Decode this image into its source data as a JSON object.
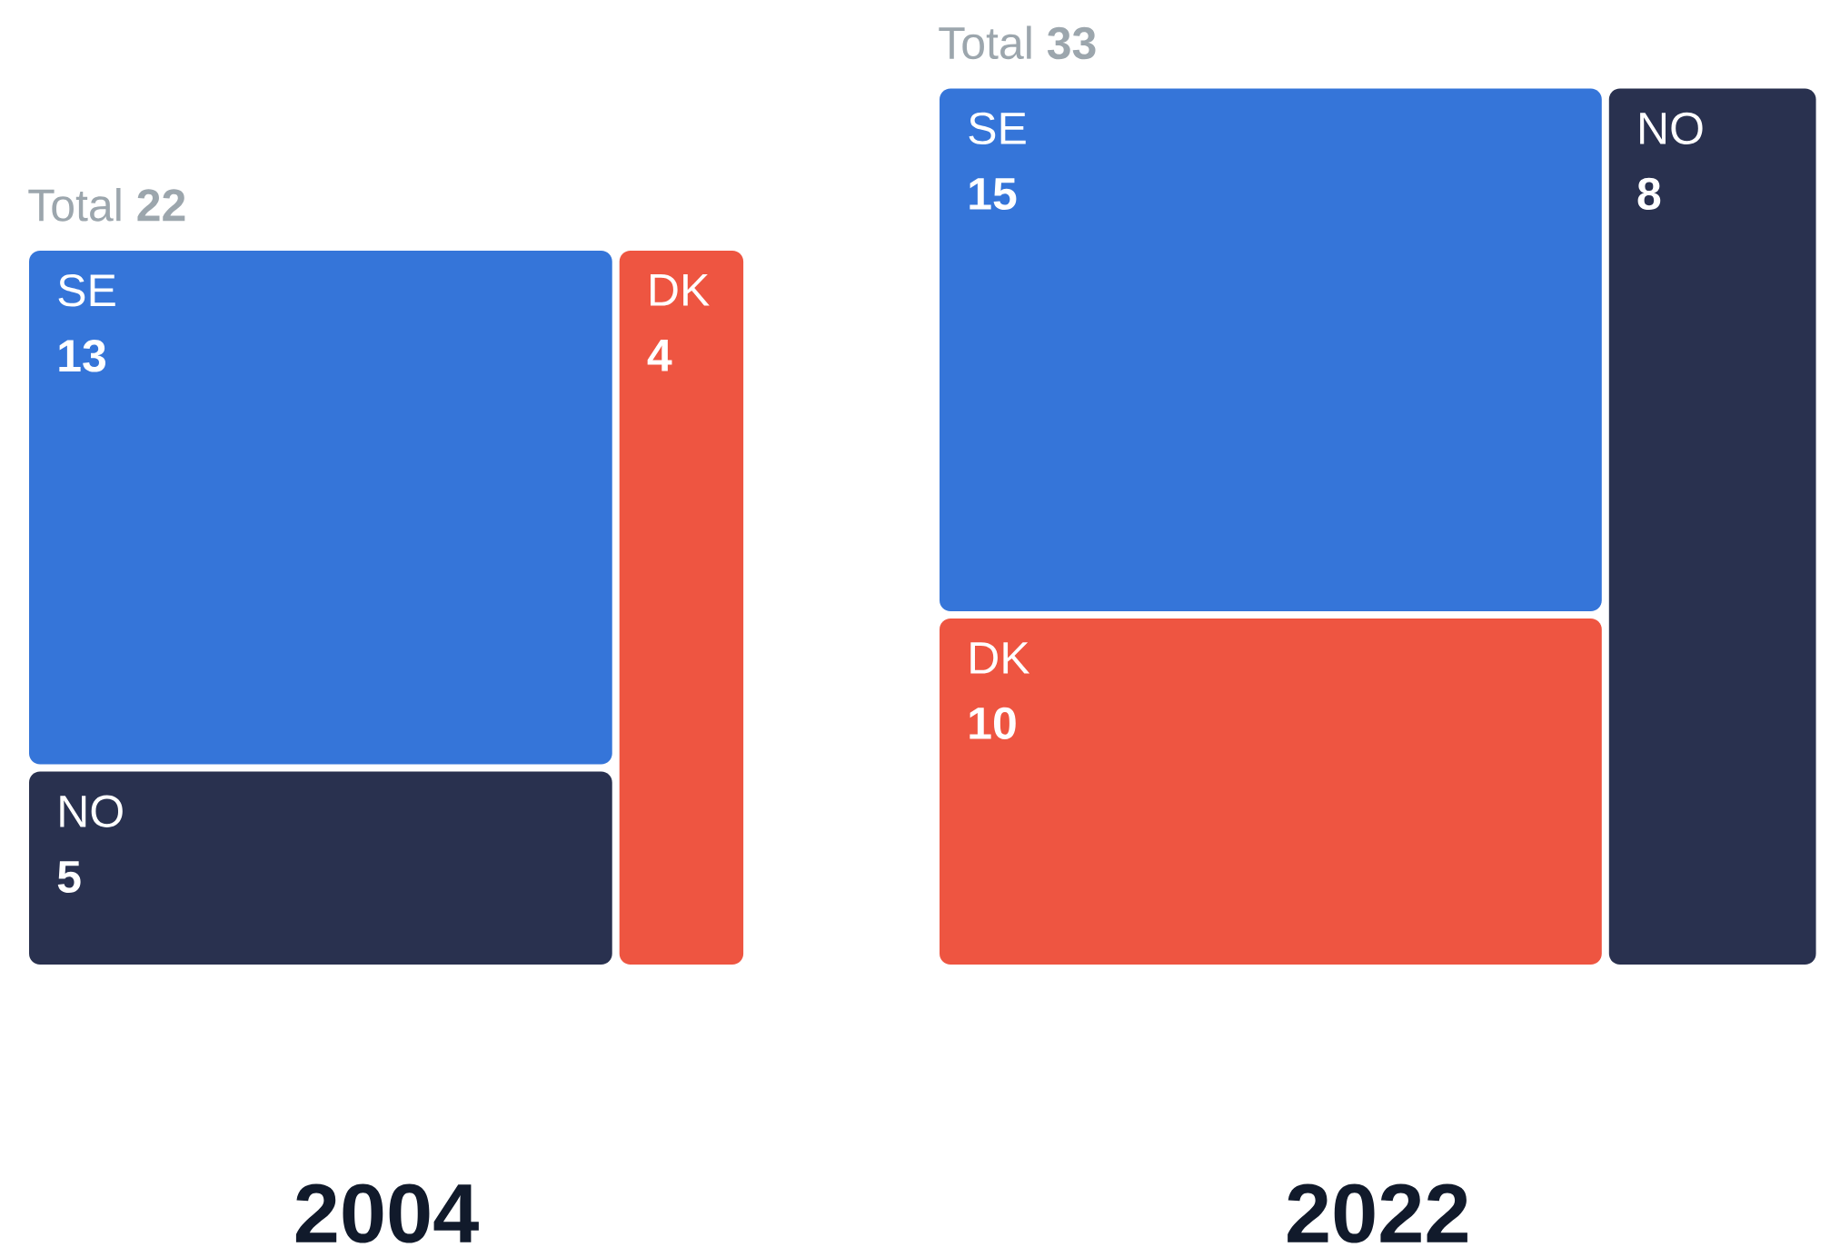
{
  "chart_data": [
    {
      "type": "other",
      "title": "2004",
      "subtitle": "Total **22**",
      "categories": [
        "SE",
        "NO",
        "DK"
      ],
      "values": [
        13,
        5,
        4
      ],
      "colors": [
        "#3575d9",
        "#29314f",
        "#ee5541"
      ],
      "data_labels": true
    },
    {
      "type": "other",
      "title": "2022",
      "subtitle": "Total **33**",
      "categories": [
        "SE",
        "DK",
        "NO"
      ],
      "values": [
        15,
        10,
        8
      ],
      "colors": [
        "#3575d9",
        "#ee5541",
        "#29314f"
      ],
      "data_labels": true
    }
  ]
}
